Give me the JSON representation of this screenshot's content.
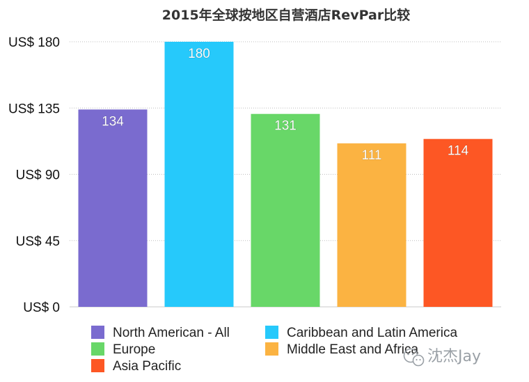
{
  "chart_data": {
    "type": "bar",
    "title": "2015年全球按地区自营酒店RevPar比较",
    "categories": [
      "North American - All",
      "Caribbean and Latin America",
      "Europe",
      "Middle East and Africa",
      "Asia Pacific"
    ],
    "values": [
      134,
      180,
      131,
      111,
      114
    ],
    "data_labels": [
      "134",
      "180",
      "131",
      "111",
      "114"
    ],
    "colors": [
      "#7a6bcf",
      "#26c9fb",
      "#68d768",
      "#fbb342",
      "#fd5724"
    ],
    "ylim": [
      0,
      180
    ],
    "yticks": [
      0,
      45,
      90,
      135,
      180
    ],
    "ytick_labels": [
      "US$ 0",
      "US$ 45",
      "US$ 90",
      "US$ 135",
      "US$ 180"
    ],
    "grid": true,
    "legend_position": "bottom"
  },
  "watermark": {
    "text": "沈杰Jay",
    "icon": "wechat-icon"
  }
}
